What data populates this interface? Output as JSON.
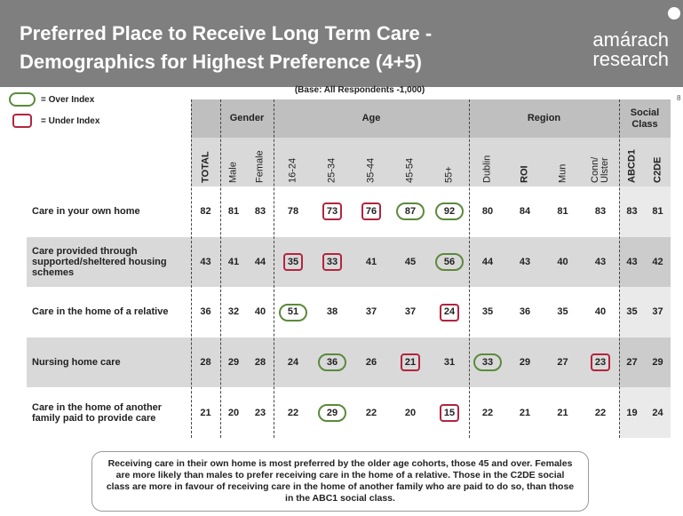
{
  "header": {
    "title": [
      "Preferred Place to Receive Long Term Care -",
      "Demographics for Highest Preference (4+5)"
    ],
    "logo": [
      "amárach",
      "research"
    ],
    "page_number": "8"
  },
  "legend": [
    {
      "label": "= Over Index",
      "mark": "over"
    },
    {
      "label": "= Under Index",
      "mark": "under"
    }
  ],
  "colors": {
    "over": "#5b8a3c",
    "under": "#b3243f"
  },
  "base_note": "(Base:  All Respondents -1,000)",
  "table": {
    "total_column": {
      "label": "TOTAL",
      "bold": true
    },
    "groups": [
      {
        "label": "Gender",
        "columns": [
          {
            "label": "Male",
            "bold": false
          },
          {
            "label": "Female",
            "bold": false
          }
        ]
      },
      {
        "label": "Age",
        "columns": [
          {
            "label": "16-24",
            "bold": false
          },
          {
            "label": "25-34",
            "bold": false
          },
          {
            "label": "35-44",
            "bold": false
          },
          {
            "label": "45-54",
            "bold": false
          },
          {
            "label": "55+",
            "bold": false
          }
        ]
      },
      {
        "label": "Region",
        "columns": [
          {
            "label": "Dublin",
            "bold": false
          },
          {
            "label": "ROI",
            "bold": true
          },
          {
            "label": "Mun",
            "bold": false
          },
          {
            "label": "Conn/ Ulster",
            "bold": false
          }
        ]
      },
      {
        "label": "Social Class",
        "columns": [
          {
            "label": "ABCD1",
            "bold": true
          },
          {
            "label": "C2DE",
            "bold": true
          }
        ]
      }
    ],
    "rows": [
      {
        "label": "Care in your own home",
        "values": [
          82,
          81,
          83,
          78,
          73,
          76,
          87,
          92,
          80,
          84,
          81,
          83,
          83,
          81
        ],
        "marks": [
          null,
          null,
          null,
          null,
          "under",
          "under",
          "over",
          "over",
          null,
          null,
          null,
          null,
          null,
          null
        ]
      },
      {
        "label": "Care provided through supported/sheltered housing schemes",
        "values": [
          43,
          41,
          44,
          35,
          33,
          41,
          45,
          56,
          44,
          43,
          40,
          43,
          43,
          42
        ],
        "marks": [
          null,
          null,
          null,
          "under",
          "under",
          null,
          null,
          "over",
          null,
          null,
          null,
          null,
          null,
          null
        ]
      },
      {
        "label": "Care in the home of a relative",
        "values": [
          36,
          32,
          40,
          51,
          38,
          37,
          37,
          24,
          35,
          36,
          35,
          40,
          35,
          37
        ],
        "marks": [
          null,
          null,
          null,
          "over",
          null,
          null,
          null,
          "under",
          null,
          null,
          null,
          null,
          null,
          null
        ]
      },
      {
        "label": "Nursing home care",
        "values": [
          28,
          29,
          28,
          24,
          36,
          26,
          21,
          31,
          33,
          29,
          27,
          23,
          27,
          29
        ],
        "marks": [
          null,
          null,
          null,
          null,
          "over",
          null,
          "under",
          null,
          "over",
          null,
          null,
          "under",
          null,
          null
        ]
      },
      {
        "label": "Care in the home of another family paid to provide care",
        "values": [
          21,
          20,
          23,
          22,
          29,
          22,
          20,
          15,
          22,
          21,
          21,
          22,
          19,
          24
        ],
        "marks": [
          null,
          null,
          null,
          null,
          "over",
          null,
          null,
          "under",
          null,
          null,
          null,
          null,
          null,
          null
        ]
      }
    ]
  },
  "footer_note": "Receiving care in their own home is most preferred by the older age cohorts, those 45 and over. Females are more likely than males to prefer receiving care in the home of a relative. Those in the C2DE social class are more in favour of receiving care in the home of another family who are paid to do so, than those in the ABC1 social class."
}
